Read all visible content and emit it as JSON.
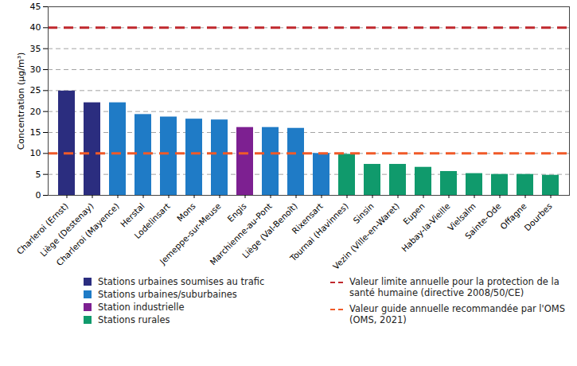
{
  "chart_data": {
    "type": "bar",
    "y_label": "Concentration (µg/m³)",
    "categories": [
      "Charleroi (Ernst)",
      "Liège (Destenay)",
      "Charleroi (Mayence)",
      "Herstal",
      "Lodelinsart",
      "Mons",
      "Jemeppe-sur-Meuse",
      "Engis",
      "Marchienne-au-Pont",
      "Liège (Val-Benoît)",
      "Rixensart",
      "Tournai (Havinnes)",
      "Sinsin",
      "Vezin (Ville-en-Waret)",
      "Eupen",
      "Habay-la-Vieille",
      "Vielsalm",
      "Sainte-Ode",
      "Offagne",
      "Dourbes"
    ],
    "series": [
      {
        "name": "Stations urbaines soumises au trafic",
        "color": "#2b2d7f",
        "values": [
          24.9,
          22.1,
          null,
          null,
          null,
          null,
          null,
          null,
          null,
          null,
          null,
          null,
          null,
          null,
          null,
          null,
          null,
          null,
          null,
          null
        ]
      },
      {
        "name": "Stations urbaines/suburbaines",
        "color": "#1f7bc6",
        "values": [
          null,
          null,
          22.1,
          19.3,
          18.7,
          18.2,
          18.0,
          null,
          16.2,
          16.0,
          10.0,
          null,
          null,
          null,
          null,
          null,
          null,
          null,
          null,
          null
        ]
      },
      {
        "name": "Station industrielle",
        "color": "#7d2091",
        "values": [
          null,
          null,
          null,
          null,
          null,
          null,
          null,
          16.2,
          null,
          null,
          null,
          null,
          null,
          null,
          null,
          null,
          null,
          null,
          null,
          null
        ]
      },
      {
        "name": "Stations rurales",
        "color": "#109a6c",
        "values": [
          null,
          null,
          null,
          null,
          null,
          null,
          null,
          null,
          null,
          null,
          null,
          9.8,
          7.4,
          7.4,
          6.7,
          5.7,
          5.2,
          5.0,
          5.0,
          4.8
        ]
      }
    ],
    "reference_lines": [
      {
        "value": 40,
        "label": "Valeur limite annuelle pour la protection de la santé humaine (directive 2008/50/CE)",
        "color": "#c0282d",
        "line_style": "dashed"
      },
      {
        "value": 10,
        "label": "Valeur guide annuelle recommandée par l'OMS (OMS, 2021)",
        "color": "#f05a28",
        "line_style": "dashed"
      }
    ],
    "ylim": [
      0,
      45
    ],
    "yticks": [
      0,
      5,
      10,
      15,
      20,
      25,
      30,
      35,
      40,
      45
    ],
    "grid": true
  }
}
